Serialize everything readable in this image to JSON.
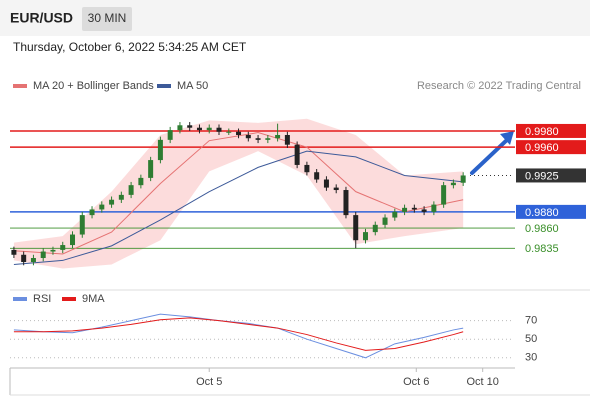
{
  "header": {
    "symbol": "EUR/USD",
    "timeframe": "30 MIN",
    "timestamp": "Thursday, October 6, 2022 5:34:25 AM CET",
    "credit": "Research © 2022 Trading Central"
  },
  "chart_data": [
    {
      "type": "candlestick",
      "xlim": [
        -0.4,
        51
      ],
      "ylim": [
        0.9802,
        0.9996
      ],
      "up_color": "#2e7d32",
      "down_color": "#222222",
      "open": [
        0.9833,
        0.9827,
        0.9818,
        0.9823,
        0.9831,
        0.9833,
        0.9839,
        0.9852,
        0.9876,
        0.9883,
        0.9889,
        0.9895,
        0.9901,
        0.9913,
        0.9922,
        0.9944,
        0.9969,
        0.9981,
        0.9987,
        0.9984,
        0.9981,
        0.9984,
        0.9979,
        0.9979,
        0.9975,
        0.9971,
        0.9969,
        0.9971,
        0.9975,
        0.9963,
        0.9938,
        0.9929,
        0.992,
        0.991,
        0.9907,
        0.9876,
        0.9845,
        0.9855,
        0.9864,
        0.9873,
        0.988,
        0.9885,
        0.9883,
        0.988,
        0.9889,
        0.9913,
        0.9916
      ],
      "high": [
        0.9837,
        0.9831,
        0.9827,
        0.9835,
        0.9837,
        0.9843,
        0.9856,
        0.988,
        0.9887,
        0.9893,
        0.9899,
        0.9905,
        0.9917,
        0.9926,
        0.9948,
        0.9973,
        0.9985,
        0.9991,
        0.9991,
        0.9988,
        0.9988,
        0.9988,
        0.9983,
        0.9983,
        0.9979,
        0.9975,
        0.9975,
        0.9989,
        0.9979,
        0.9967,
        0.9942,
        0.9933,
        0.9924,
        0.9914,
        0.9911,
        0.988,
        0.9859,
        0.9868,
        0.9877,
        0.9884,
        0.9889,
        0.9889,
        0.9887,
        0.9893,
        0.9917,
        0.992,
        0.9929
      ],
      "low": [
        0.9823,
        0.9814,
        0.9814,
        0.9819,
        0.9827,
        0.9829,
        0.9835,
        0.9848,
        0.9872,
        0.9879,
        0.9885,
        0.9891,
        0.9897,
        0.9909,
        0.9918,
        0.994,
        0.9965,
        0.9977,
        0.998,
        0.9977,
        0.9977,
        0.9975,
        0.9975,
        0.9971,
        0.9967,
        0.9965,
        0.9965,
        0.9967,
        0.9959,
        0.9934,
        0.9925,
        0.9916,
        0.9906,
        0.9903,
        0.9872,
        0.9835,
        0.9841,
        0.9851,
        0.986,
        0.9869,
        0.9876,
        0.9879,
        0.9876,
        0.9876,
        0.9885,
        0.9909,
        0.9912
      ],
      "close": [
        0.9827,
        0.9818,
        0.9823,
        0.9831,
        0.9833,
        0.9839,
        0.9852,
        0.9876,
        0.9883,
        0.9889,
        0.9895,
        0.9901,
        0.9913,
        0.9922,
        0.9944,
        0.9969,
        0.9981,
        0.9987,
        0.9984,
        0.9981,
        0.9984,
        0.9979,
        0.9979,
        0.9975,
        0.9971,
        0.9969,
        0.9971,
        0.9975,
        0.9963,
        0.9938,
        0.9929,
        0.992,
        0.991,
        0.9907,
        0.9876,
        0.9845,
        0.9855,
        0.9864,
        0.9873,
        0.988,
        0.9885,
        0.9883,
        0.988,
        0.9889,
        0.9913,
        0.9916,
        0.9925
      ],
      "series": [
        {
          "name": "MA 20 + Bollinger Bands",
          "color": "#e57373",
          "band_color": "#fbd3d3",
          "x": [
            0,
            5,
            10,
            15,
            20,
            25,
            30,
            35,
            40,
            46
          ],
          "values": [
            0.9832,
            0.9828,
            0.9855,
            0.9915,
            0.9968,
            0.9978,
            0.996,
            0.9905,
            0.988,
            0.9895
          ],
          "upper": [
            0.9842,
            0.985,
            0.9905,
            0.9975,
            0.9993,
            0.999,
            0.9995,
            0.9975,
            0.9925,
            0.993
          ],
          "lower": [
            0.982,
            0.981,
            0.9815,
            0.9845,
            0.993,
            0.9955,
            0.9925,
            0.984,
            0.985,
            0.986
          ]
        },
        {
          "name": "MA 50",
          "color": "#3d5a99",
          "x": [
            0,
            5,
            10,
            15,
            20,
            25,
            30,
            35,
            40,
            46
          ],
          "values": [
            0.9815,
            0.982,
            0.9838,
            0.987,
            0.9905,
            0.9935,
            0.9955,
            0.9948,
            0.9925,
            0.9917
          ]
        }
      ],
      "levels": [
        {
          "value": 0.998,
          "label": "0.9980",
          "color": "#e31b1b",
          "style": "box"
        },
        {
          "value": 0.996,
          "label": "0.9960",
          "color": "#e31b1b",
          "style": "box"
        },
        {
          "value": 0.9925,
          "label": "0.9925",
          "color": "#333333",
          "style": "current"
        },
        {
          "value": 0.988,
          "label": "0.9880",
          "color": "#2f62d9",
          "style": "box"
        },
        {
          "value": 0.986,
          "label": "0.9860",
          "color": "#3a8f2a",
          "style": "text"
        },
        {
          "value": 0.9835,
          "label": "0.9835",
          "color": "#3a8f2a",
          "style": "text"
        }
      ]
    },
    {
      "type": "line",
      "xlim": [
        -0.4,
        51
      ],
      "ylim": [
        19,
        103
      ],
      "yticks": [
        30,
        50,
        70
      ],
      "grid": true,
      "xticks": [
        {
          "value": 20,
          "label": "Oct 5"
        },
        {
          "value": 41.2,
          "label": "Oct 6"
        },
        {
          "value": 48,
          "label": "Oct 10"
        }
      ],
      "series": [
        {
          "name": "RSI",
          "color": "#6b8fe0",
          "x": [
            0,
            3,
            6,
            9,
            12,
            15,
            18,
            21,
            24,
            27,
            30,
            33,
            36,
            39,
            42,
            45,
            46
          ],
          "values": [
            60,
            58,
            57,
            63,
            70,
            77,
            74,
            70,
            67,
            62,
            50,
            40,
            30,
            45,
            52,
            60,
            62
          ]
        },
        {
          "name": "9MA",
          "color": "#e31b1b",
          "x": [
            0,
            3,
            6,
            9,
            12,
            15,
            18,
            21,
            24,
            27,
            30,
            33,
            36,
            39,
            42,
            45,
            46
          ],
          "values": [
            58,
            58,
            59,
            62,
            66,
            71,
            73,
            70,
            66,
            62,
            55,
            46,
            38,
            40,
            47,
            55,
            58
          ]
        }
      ]
    }
  ]
}
